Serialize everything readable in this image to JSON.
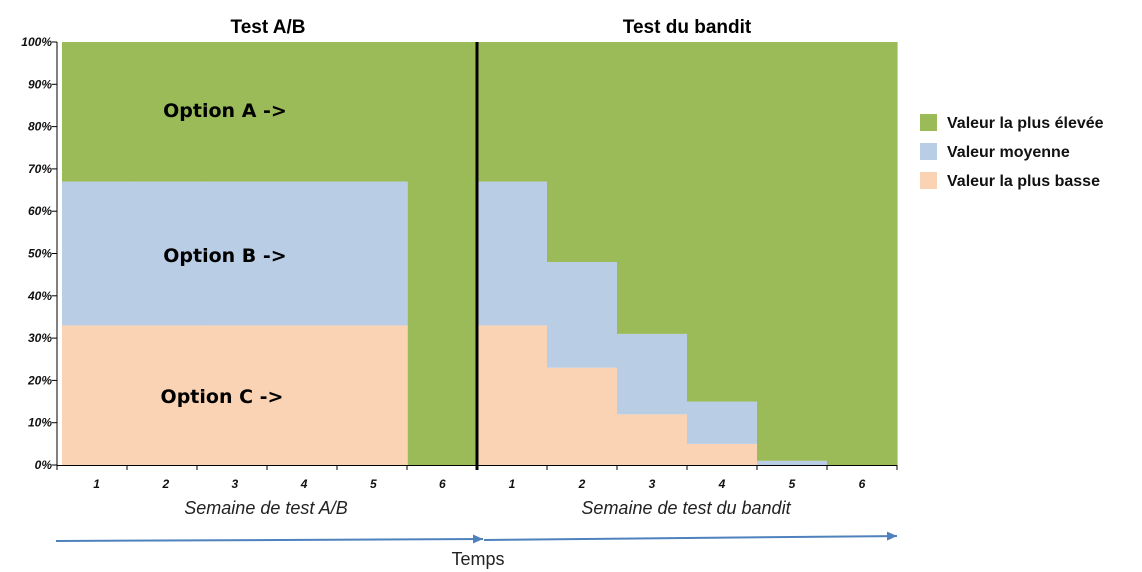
{
  "colors": {
    "high": "#9bbb59",
    "mid": "#b9cde5",
    "low": "#fad3b5",
    "arrow": "#4f81bd",
    "axis": "#000000",
    "divider": "#000000"
  },
  "chart_data": {
    "type": "area",
    "y_ticks": [
      "0%",
      "10%",
      "20%",
      "30%",
      "40%",
      "50%",
      "60%",
      "70%",
      "80%",
      "90%",
      "100%"
    ],
    "ylim": [
      0,
      100
    ],
    "legend": {
      "placement": "right",
      "entries": [
        {
          "label": "Valeur la plus élevée",
          "color_key": "high"
        },
        {
          "label": "Valeur moyenne",
          "color_key": "mid"
        },
        {
          "label": "Valeur la plus basse",
          "color_key": "low"
        }
      ]
    },
    "panels": [
      {
        "title": "Test A/B",
        "xlabel": "Semaine de test A/B",
        "categories": [
          "1",
          "2",
          "3",
          "4",
          "5",
          "6"
        ],
        "series": [
          {
            "name": "Valeur la plus basse",
            "values": [
              33,
              33,
              33,
              33,
              33,
              0
            ]
          },
          {
            "name": "Valeur moyenne",
            "values": [
              34,
              34,
              34,
              34,
              34,
              0
            ]
          },
          {
            "name": "Valeur la plus élevée",
            "values": [
              33,
              33,
              33,
              33,
              33,
              100
            ]
          }
        ],
        "annotations": [
          "Option A ->",
          "Option B ->",
          "Option C ->"
        ]
      },
      {
        "title": "Test du bandit",
        "xlabel": "Semaine de test du bandit",
        "categories": [
          "1",
          "2",
          "3",
          "4",
          "5",
          "6"
        ],
        "series": [
          {
            "name": "Valeur la plus basse",
            "values": [
              33,
              23,
              12,
              5,
              0,
              0
            ]
          },
          {
            "name": "Valeur moyenne",
            "values": [
              34,
              25,
              19,
              10,
              1,
              0
            ]
          },
          {
            "name": "Valeur la plus élevée",
            "values": [
              33,
              52,
              69,
              85,
              99,
              100
            ]
          }
        ]
      }
    ],
    "time_label": "Temps"
  }
}
